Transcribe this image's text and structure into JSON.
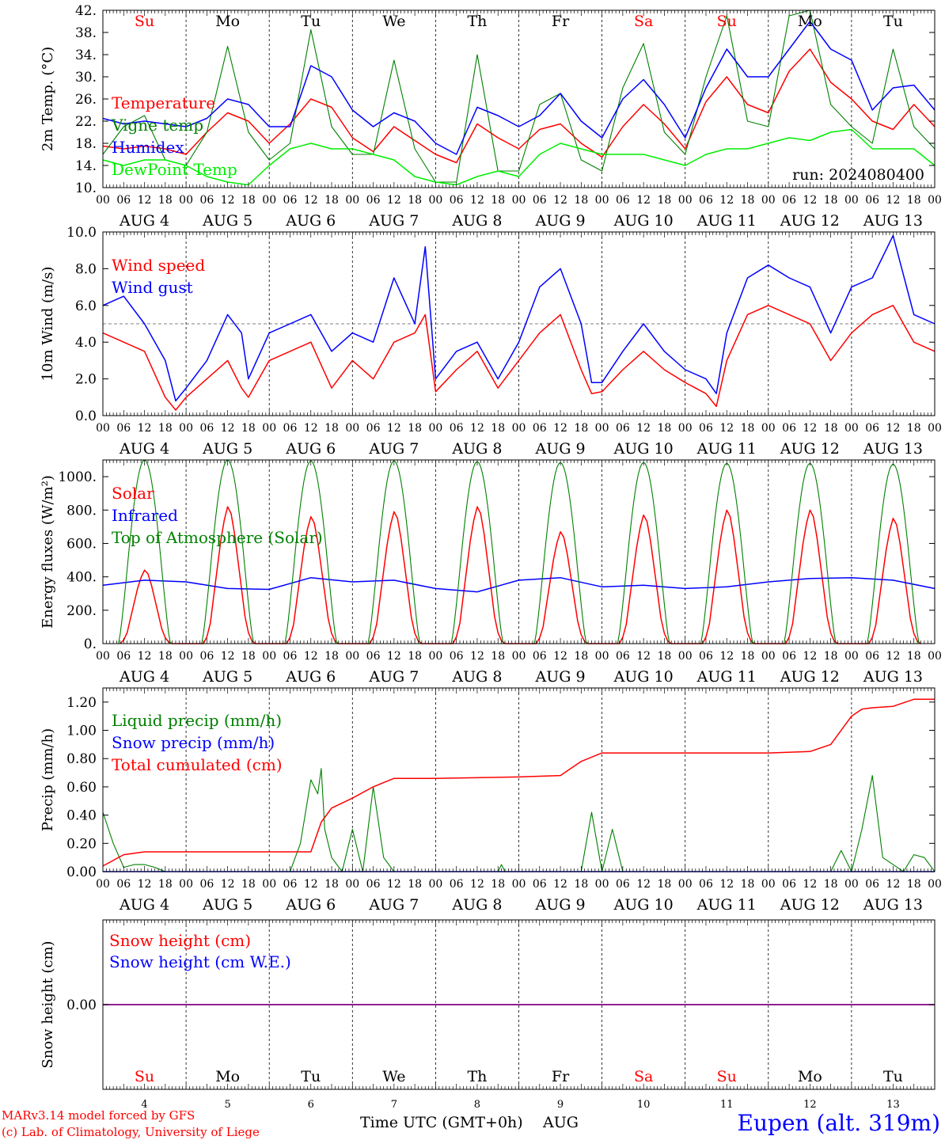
{
  "run_label": "run: 2024080400",
  "footer": {
    "model": "MARv3.14 model forced by GFS",
    "credit": "(c) Lab. of Climatology, University of Liege",
    "time_axis_label": "Time UTC (GMT+0h)",
    "month_label": "AUG",
    "station": "Eupen (alt. 319m)"
  },
  "colors": {
    "red": "#ff0000",
    "green": "#008000",
    "blue": "#0000ff",
    "lightgreen": "#00ee00",
    "purple": "#800080",
    "weekend": "#ff0000"
  },
  "days": {
    "names": [
      "Su",
      "Mo",
      "Tu",
      "We",
      "Th",
      "Fr",
      "Sa",
      "Su",
      "Mo",
      "Tu"
    ],
    "dates": [
      "4",
      "5",
      "6",
      "7",
      "8",
      "9",
      "10",
      "11",
      "12",
      "13"
    ],
    "date_labels": [
      "AUG  4",
      "AUG  5",
      "AUG  6",
      "AUG  7",
      "AUG  8",
      "AUG  9",
      "AUG 10",
      "AUG 11",
      "AUG 12",
      "AUG 13"
    ],
    "weekend": [
      true,
      false,
      false,
      false,
      false,
      false,
      true,
      true,
      false,
      false
    ],
    "hour_ticks": [
      "00",
      "06",
      "12",
      "18"
    ],
    "final_hour": "00"
  },
  "chart_data": [
    {
      "type": "line",
      "ylabel": "2m Temp. (°C)",
      "ylim": [
        10,
        42
      ],
      "yticks": [
        "10.",
        "14.",
        "18.",
        "22.",
        "26.",
        "30.",
        "34.",
        "38.",
        "42."
      ],
      "yticks_values": [
        10,
        14,
        18,
        22,
        26,
        30,
        34,
        38,
        42
      ],
      "x_unit": "hours since AUG 4 00 UTC",
      "series": [
        {
          "name": "Temperature",
          "color": "#ff0000",
          "x": [
            0,
            6,
            12,
            18,
            24,
            30,
            36,
            42,
            48,
            54,
            60,
            66,
            72,
            78,
            84,
            90,
            96,
            102,
            108,
            114,
            120,
            126,
            132,
            138,
            144,
            150,
            156,
            162,
            168,
            174,
            180,
            186,
            192,
            198,
            204,
            210,
            216,
            222,
            228,
            234,
            240
          ],
          "y": [
            17.5,
            17,
            17.5,
            17,
            16,
            20,
            23.5,
            22,
            18,
            21.5,
            26,
            24.5,
            19,
            16.5,
            21,
            18.5,
            16,
            14.5,
            21.5,
            19,
            17,
            20.5,
            21.5,
            18,
            15.5,
            21,
            25,
            21.5,
            17,
            25.5,
            30,
            25,
            23.5,
            31,
            35,
            29,
            26,
            22,
            20.5,
            25,
            21
          ]
        },
        {
          "name": "Vigne temp",
          "color": "#008000",
          "x": [
            0,
            6,
            12,
            18,
            24,
            30,
            36,
            42,
            48,
            54,
            60,
            66,
            72,
            78,
            84,
            90,
            96,
            102,
            108,
            114,
            120,
            126,
            132,
            138,
            144,
            150,
            156,
            162,
            168,
            174,
            180,
            186,
            192,
            198,
            204,
            210,
            216,
            222,
            228,
            234,
            240
          ],
          "y": [
            16,
            21,
            23,
            15,
            14,
            20,
            35.5,
            20,
            15,
            18,
            38.5,
            21,
            16,
            16,
            33,
            17,
            11,
            11,
            34,
            13,
            13,
            25,
            27,
            15,
            13,
            28,
            36,
            20,
            16,
            30,
            41,
            22,
            21,
            41,
            42,
            25,
            21,
            18,
            35,
            21,
            17
          ]
        },
        {
          "name": "Humidex",
          "color": "#0000ff",
          "x": [
            0,
            6,
            12,
            18,
            24,
            30,
            36,
            42,
            48,
            54,
            60,
            66,
            72,
            78,
            84,
            90,
            96,
            102,
            108,
            114,
            120,
            126,
            132,
            138,
            144,
            150,
            156,
            162,
            168,
            174,
            180,
            186,
            192,
            198,
            204,
            210,
            216,
            222,
            228,
            234,
            240
          ],
          "y": [
            22.5,
            21.5,
            22,
            21.5,
            21,
            22.5,
            26,
            25,
            21,
            21,
            32,
            30,
            24,
            21,
            23.5,
            22,
            18,
            16,
            24.5,
            23,
            21,
            23,
            27,
            22,
            19,
            26,
            29.5,
            25,
            19,
            28,
            35,
            30,
            30,
            35,
            40,
            35,
            33,
            24,
            28,
            28.5,
            24
          ]
        },
        {
          "name": "DewPoint Temp",
          "color": "#00ee00",
          "x": [
            0,
            6,
            12,
            18,
            24,
            30,
            36,
            42,
            48,
            54,
            60,
            66,
            72,
            78,
            84,
            90,
            96,
            102,
            108,
            114,
            120,
            126,
            132,
            138,
            144,
            150,
            156,
            162,
            168,
            174,
            180,
            186,
            192,
            198,
            204,
            210,
            216,
            222,
            228,
            234,
            240
          ],
          "y": [
            15,
            14,
            15,
            15,
            14,
            12,
            11,
            10.5,
            14,
            17,
            18,
            17,
            17,
            16,
            15,
            12,
            11,
            10.5,
            12,
            13,
            12,
            16,
            18,
            17,
            16,
            16,
            16,
            15,
            14,
            16,
            17,
            17,
            18,
            19,
            18.5,
            20,
            20.5,
            17,
            17,
            17,
            14
          ]
        }
      ]
    },
    {
      "type": "line",
      "ylabel": "10m Wind (m/s)",
      "ylim": [
        0,
        10
      ],
      "yticks": [
        "0.0",
        "2.0",
        "4.0",
        "6.0",
        "8.0",
        "10.0"
      ],
      "yticks_values": [
        0,
        2,
        4,
        6,
        8,
        10
      ],
      "reference_line": 5,
      "x_unit": "hours since AUG 4 00 UTC",
      "series": [
        {
          "name": "Wind speed",
          "color": "#ff0000",
          "x": [
            0,
            6,
            12,
            18,
            21,
            24,
            30,
            36,
            40,
            42,
            48,
            54,
            60,
            66,
            72,
            78,
            84,
            90,
            93,
            96,
            102,
            108,
            114,
            120,
            126,
            132,
            138,
            141,
            144,
            150,
            156,
            162,
            168,
            174,
            177,
            180,
            186,
            192,
            198,
            204,
            210,
            216,
            222,
            228,
            234,
            240
          ],
          "y": [
            4.5,
            4,
            3.5,
            1,
            0.3,
            1,
            2,
            3,
            1.5,
            1,
            3,
            3.5,
            4,
            1.5,
            3,
            2,
            4,
            4.5,
            5.5,
            1.3,
            2.5,
            3.5,
            1.5,
            3,
            4.5,
            5.5,
            2.5,
            1.2,
            1.3,
            2.5,
            3.5,
            2.5,
            1.8,
            1.2,
            0.5,
            3,
            5.5,
            6,
            5.5,
            5,
            3,
            4.5,
            5.5,
            6,
            4,
            3.5
          ]
        },
        {
          "name": "Wind gust",
          "color": "#0000ff",
          "x": [
            0,
            6,
            12,
            18,
            21,
            24,
            30,
            36,
            40,
            42,
            48,
            54,
            60,
            66,
            72,
            78,
            84,
            90,
            93,
            96,
            102,
            108,
            114,
            120,
            126,
            132,
            138,
            141,
            144,
            150,
            156,
            162,
            168,
            174,
            177,
            180,
            186,
            192,
            198,
            204,
            210,
            216,
            222,
            228,
            234,
            240
          ],
          "y": [
            6,
            6.5,
            5,
            3,
            0.8,
            1.5,
            3,
            5.5,
            4.5,
            2,
            4.5,
            5,
            5.5,
            3.5,
            4.5,
            4,
            7.5,
            5,
            9.2,
            2,
            3.5,
            4,
            2,
            4,
            7,
            8,
            5,
            1.8,
            1.8,
            3.5,
            5,
            3.5,
            2.5,
            2,
            1.2,
            4.5,
            7.5,
            8.2,
            7.5,
            7,
            4.5,
            7,
            7.5,
            9.8,
            5.5,
            5
          ]
        }
      ]
    },
    {
      "type": "line",
      "ylabel": "Energy fluxes (W/m²)",
      "ylim": [
        0,
        1100
      ],
      "yticks": [
        "0.",
        "200.",
        "400.",
        "600.",
        "800.",
        "1000."
      ],
      "yticks_values": [
        0,
        200,
        400,
        600,
        800,
        1000
      ],
      "x_unit": "hours since AUG 4 00 UTC",
      "series": [
        {
          "name": "Solar",
          "color": "#ff0000",
          "daily_peaks": [
            440,
            820,
            760,
            790,
            820,
            670,
            770,
            800,
            800,
            750
          ],
          "hours_of_day": [
            5,
            6,
            7,
            8,
            9,
            10,
            11,
            12,
            13,
            14,
            15,
            16,
            17,
            18,
            19,
            20
          ],
          "daily_profile_fraction": [
            0,
            0.05,
            0.15,
            0.35,
            0.55,
            0.75,
            0.9,
            1,
            0.95,
            0.8,
            0.6,
            0.4,
            0.2,
            0.08,
            0.02,
            0
          ]
        },
        {
          "name": "Infrared",
          "color": "#0000ff",
          "x": [
            0,
            12,
            24,
            36,
            48,
            60,
            72,
            84,
            96,
            108,
            120,
            132,
            144,
            156,
            168,
            180,
            192,
            204,
            216,
            228,
            240
          ],
          "y": [
            350,
            380,
            370,
            330,
            325,
            395,
            370,
            380,
            330,
            310,
            380,
            395,
            340,
            350,
            330,
            340,
            370,
            390,
            395,
            380,
            330
          ]
        },
        {
          "name": "Top of Atmosphere (Solar)",
          "color": "#008000",
          "daily_peaks": [
            1100,
            1100,
            1095,
            1095,
            1090,
            1085,
            1085,
            1080,
            1080,
            1075
          ],
          "daylight_hours": [
            4.5,
            19.5
          ]
        }
      ]
    },
    {
      "type": "line",
      "ylabel": "Precip (mm/h)",
      "ylim": [
        0,
        1.3
      ],
      "yticks": [
        "0.00",
        "0.20",
        "0.40",
        "0.60",
        "0.80",
        "1.00",
        "1.20"
      ],
      "yticks_values": [
        0,
        0.2,
        0.4,
        0.6,
        0.8,
        1.0,
        1.2
      ],
      "x_unit": "hours since AUG 4 00 UTC",
      "series": [
        {
          "name": "Liquid precip (mm/h)",
          "color": "#008000",
          "x": [
            0,
            3,
            6,
            9,
            12,
            15,
            18,
            54,
            57,
            60,
            62,
            63,
            64,
            66,
            69,
            72,
            75,
            78,
            81,
            84,
            87,
            90,
            93,
            96,
            114,
            115,
            116,
            138,
            141,
            144,
            147,
            150,
            153,
            156,
            210,
            213,
            216,
            219,
            222,
            225,
            228,
            231,
            234,
            237,
            240
          ],
          "y": [
            0.42,
            0.2,
            0.03,
            0.05,
            0.05,
            0.03,
            0,
            0,
            0.2,
            0.65,
            0.55,
            0.73,
            0.3,
            0.1,
            0,
            0.3,
            0,
            0.6,
            0.1,
            0,
            0,
            0,
            0,
            0,
            0,
            0.05,
            0,
            0,
            0.42,
            0,
            0.3,
            0,
            0,
            0,
            0,
            0.15,
            0,
            0.3,
            0.68,
            0.1,
            0.05,
            0,
            0.12,
            0.1,
            0
          ]
        },
        {
          "name": "Snow precip (mm/h)",
          "color": "#0000ff",
          "x": [
            0,
            240
          ],
          "y": [
            0,
            0
          ]
        },
        {
          "name": "Total cumulated (cm)",
          "color": "#ff0000",
          "x": [
            0,
            6,
            12,
            24,
            48,
            60,
            63,
            66,
            72,
            78,
            84,
            96,
            120,
            132,
            138,
            144,
            168,
            192,
            204,
            210,
            216,
            219,
            222,
            228,
            234,
            240
          ],
          "y": [
            0.04,
            0.12,
            0.14,
            0.14,
            0.14,
            0.14,
            0.35,
            0.45,
            0.52,
            0.6,
            0.66,
            0.66,
            0.67,
            0.68,
            0.78,
            0.84,
            0.84,
            0.84,
            0.85,
            0.9,
            1.1,
            1.15,
            1.16,
            1.17,
            1.22,
            1.22
          ]
        }
      ]
    },
    {
      "type": "line",
      "ylabel": "Snow height (cm)",
      "ylim": [
        -1,
        1
      ],
      "yticks": [
        "0.00"
      ],
      "yticks_values": [
        0
      ],
      "x_unit": "hours since AUG 4 00 UTC",
      "series": [
        {
          "name": "Snow height (cm)",
          "color": "#ff0000",
          "x": [
            0,
            240
          ],
          "y": [
            0,
            0
          ]
        },
        {
          "name": "Snow height (cm W.E.)",
          "color": "#0000ff",
          "x": [
            0,
            240
          ],
          "y": [
            0,
            0
          ]
        }
      ]
    }
  ]
}
